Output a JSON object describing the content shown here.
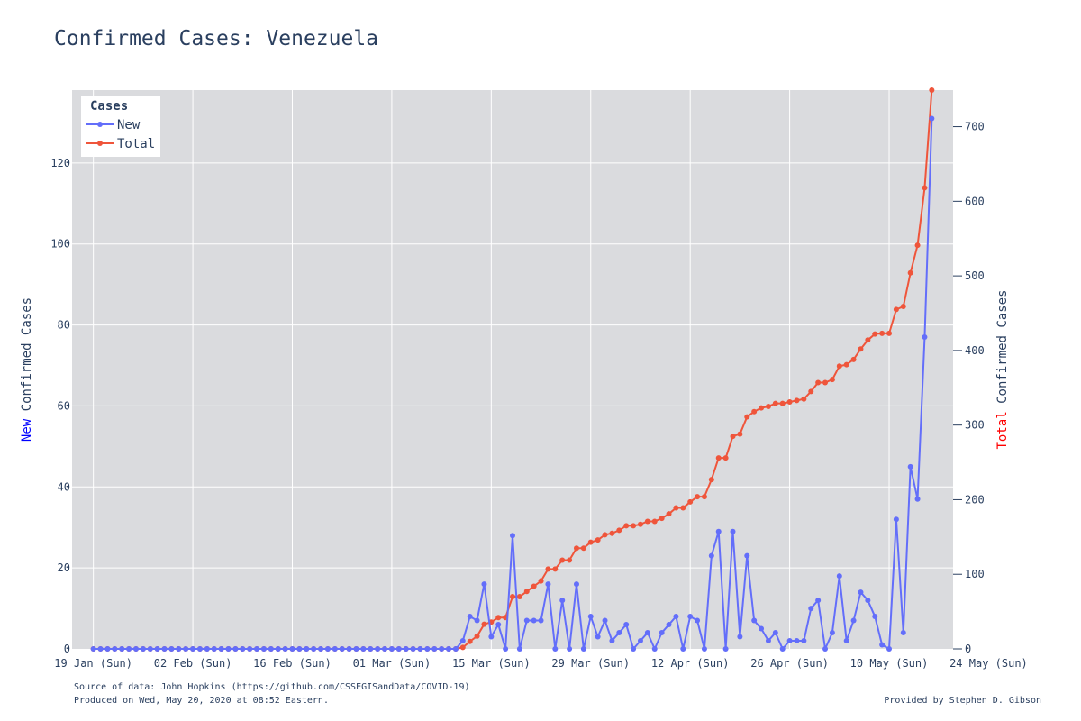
{
  "chart_data": {
    "type": "line",
    "title": "Confirmed Cases: Venezuela",
    "start_date": "2020-01-22",
    "x_range_days_from_start": [
      -3,
      121
    ],
    "x_ticks": [
      {
        "day": 0,
        "label": "19 Jan (Sun)"
      },
      {
        "day": 14,
        "label": "02 Feb (Sun)"
      },
      {
        "day": 28,
        "label": "16 Feb (Sun)"
      },
      {
        "day": 42,
        "label": "01 Mar (Sun)"
      },
      {
        "day": 56,
        "label": "15 Mar (Sun)"
      },
      {
        "day": 70,
        "label": "29 Mar (Sun)"
      },
      {
        "day": 84,
        "label": "12 Apr (Sun)"
      },
      {
        "day": 98,
        "label": "26 Apr (Sun)"
      },
      {
        "day": 112,
        "label": "10 May (Sun)"
      },
      {
        "day": 126,
        "label": "24 May (Sun)"
      }
    ],
    "y_left": {
      "title_prefix": "New",
      "title_rest": " Confirmed Cases",
      "prefix_color": "#0000ff",
      "ylim": [
        0,
        138
      ],
      "ticks": [
        0,
        20,
        40,
        60,
        80,
        100,
        120
      ]
    },
    "y_right": {
      "title_prefix": "Total",
      "title_rest": " Confirmed Cases",
      "prefix_color": "#ff0000",
      "ylim": [
        0,
        749
      ],
      "ticks": [
        0,
        100,
        200,
        300,
        400,
        500,
        600,
        700
      ]
    },
    "legend": {
      "title": "Cases",
      "position": "top-left"
    },
    "series": [
      {
        "name": "New",
        "color": "#636efa",
        "axis": "left",
        "values": [
          0,
          0,
          0,
          0,
          0,
          0,
          0,
          0,
          0,
          0,
          0,
          0,
          0,
          0,
          0,
          0,
          0,
          0,
          0,
          0,
          0,
          0,
          0,
          0,
          0,
          0,
          0,
          0,
          0,
          0,
          0,
          0,
          0,
          0,
          0,
          0,
          0,
          0,
          0,
          0,
          0,
          0,
          0,
          0,
          0,
          0,
          0,
          0,
          0,
          0,
          0,
          0,
          2,
          8,
          7,
          16,
          3,
          6,
          0,
          28,
          0,
          7,
          7,
          7,
          16,
          0,
          12,
          0,
          16,
          0,
          8,
          3,
          7,
          2,
          4,
          6,
          0,
          2,
          4,
          0,
          4,
          6,
          8,
          0,
          8,
          7,
          0,
          23,
          29,
          0,
          29,
          3,
          23,
          7,
          5,
          2,
          4,
          0,
          2,
          2,
          2,
          10,
          12,
          0,
          4,
          18,
          2,
          7,
          14,
          12,
          8,
          1,
          0,
          32,
          4,
          45,
          37,
          77,
          131
        ]
      },
      {
        "name": "Total",
        "color": "#ef553b",
        "axis": "right",
        "values": [
          0,
          0,
          0,
          0,
          0,
          0,
          0,
          0,
          0,
          0,
          0,
          0,
          0,
          0,
          0,
          0,
          0,
          0,
          0,
          0,
          0,
          0,
          0,
          0,
          0,
          0,
          0,
          0,
          0,
          0,
          0,
          0,
          0,
          0,
          0,
          0,
          0,
          0,
          0,
          0,
          0,
          0,
          0,
          0,
          0,
          0,
          0,
          0,
          0,
          0,
          0,
          0,
          2,
          10,
          17,
          33,
          36,
          42,
          42,
          70,
          70,
          77,
          84,
          91,
          107,
          107,
          119,
          119,
          135,
          135,
          143,
          146,
          153,
          155,
          159,
          165,
          165,
          167,
          171,
          171,
          175,
          181,
          189,
          189,
          197,
          204,
          204,
          227,
          256,
          256,
          285,
          288,
          311,
          318,
          323,
          325,
          329,
          329,
          331,
          333,
          335,
          345,
          357,
          357,
          361,
          379,
          381,
          388,
          402,
          414,
          422,
          423,
          423,
          455,
          459,
          504,
          541,
          618,
          749
        ]
      }
    ]
  },
  "footer": {
    "source": "Source of data: John Hopkins (https://github.com/CSSEGISandData/COVID-19)",
    "produced": "Produced on Wed, May 20, 2020 at 08:52 Eastern.",
    "credit": "Provided by Stephen D. Gibson"
  }
}
